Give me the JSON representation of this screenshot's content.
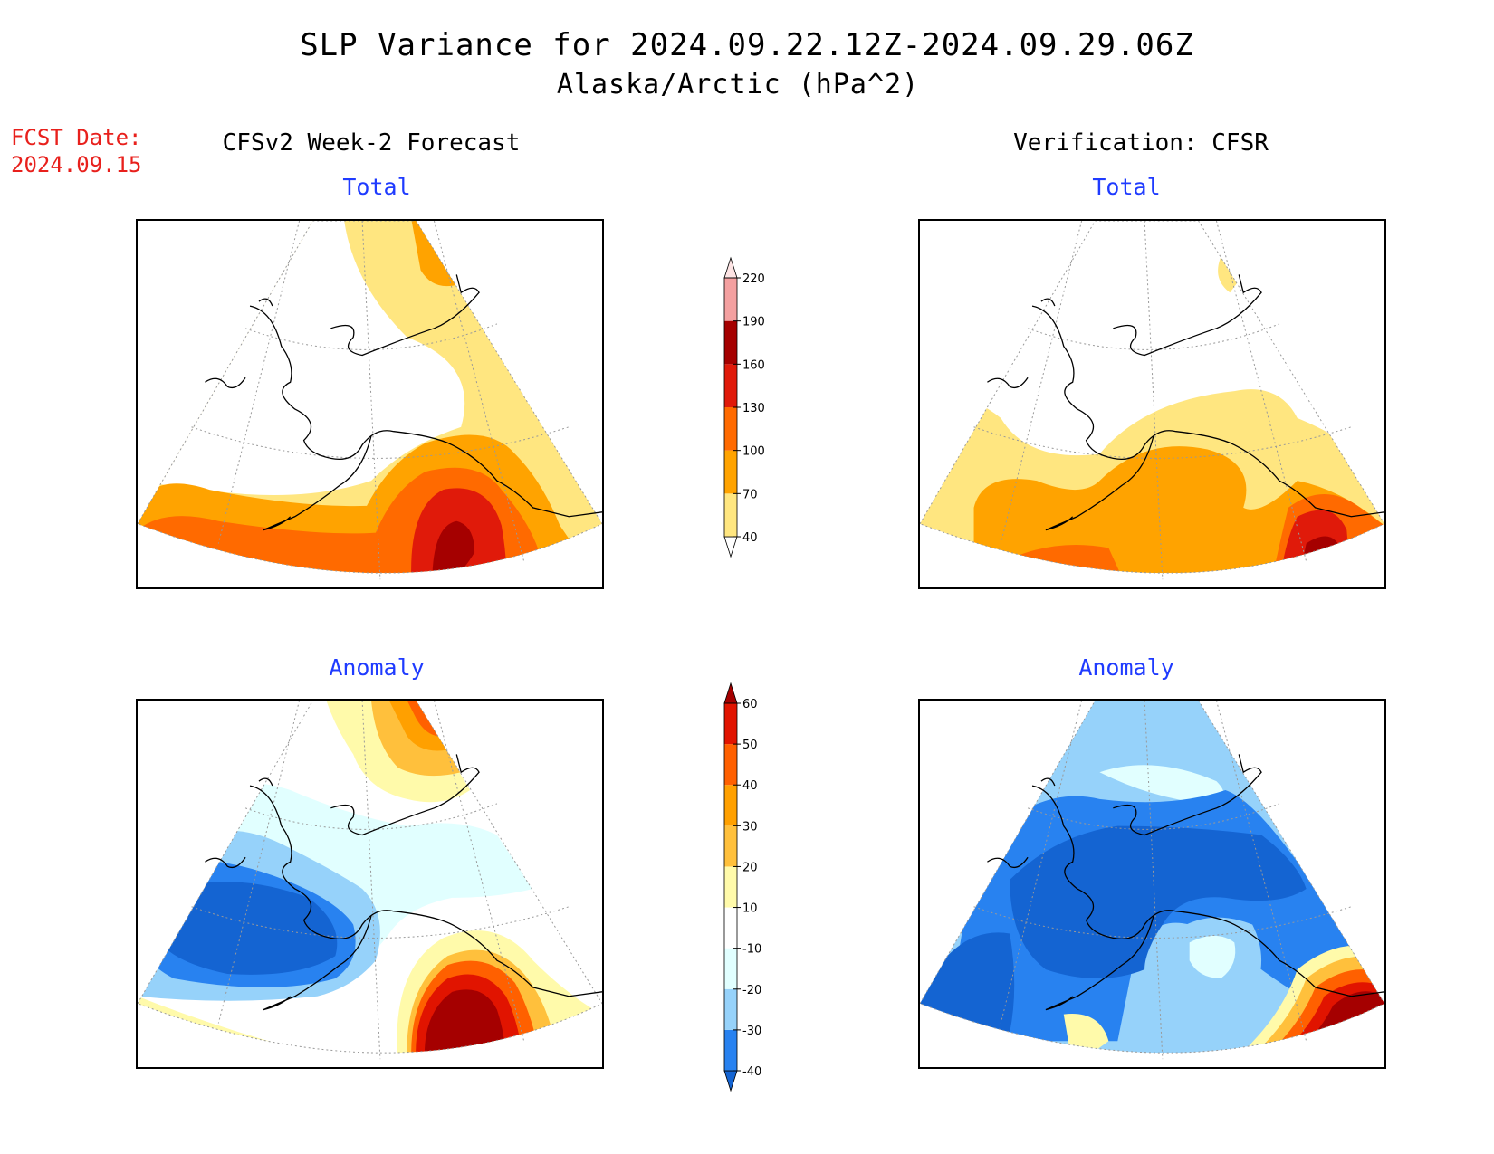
{
  "header": {
    "title": "SLP Variance for 2024.09.22.12Z-2024.09.29.06Z",
    "subtitle": "Alaska/Arctic (hPa^2)"
  },
  "forecast_date": {
    "label": "FCST Date:",
    "value": "2024.09.15"
  },
  "columns": {
    "left": "CFSv2 Week-2 Forecast",
    "right": "Verification: CFSR"
  },
  "panels": {
    "total_left": "Total",
    "total_right": "Total",
    "anomaly_left": "Anomaly",
    "anomaly_right": "Anomaly"
  },
  "colorbars": {
    "total": {
      "labels": [
        "40",
        "70",
        "100",
        "130",
        "160",
        "190",
        "220"
      ],
      "colors": [
        "#ffffff",
        "#ffe680",
        "#ffa300",
        "#ff6a00",
        "#e01a0a",
        "#a50000",
        "#f4a0a0",
        "#fde4e4"
      ]
    },
    "anomaly": {
      "labels": [
        "-40",
        "-30",
        "-20",
        "-10",
        "10",
        "20",
        "30",
        "40",
        "50",
        "60"
      ],
      "colors": [
        "#1464d2",
        "#2882f0",
        "#96d2fa",
        "#e1ffff",
        "#ffffff",
        "#fffaaa",
        "#ffc03c",
        "#ffa000",
        "#ff6000",
        "#e11400",
        "#a50000"
      ]
    }
  },
  "palette": {
    "coast": "#000000",
    "grid": "#999999",
    "title_red": "#e8201c",
    "subtitle_blue": "#1f3bff"
  }
}
